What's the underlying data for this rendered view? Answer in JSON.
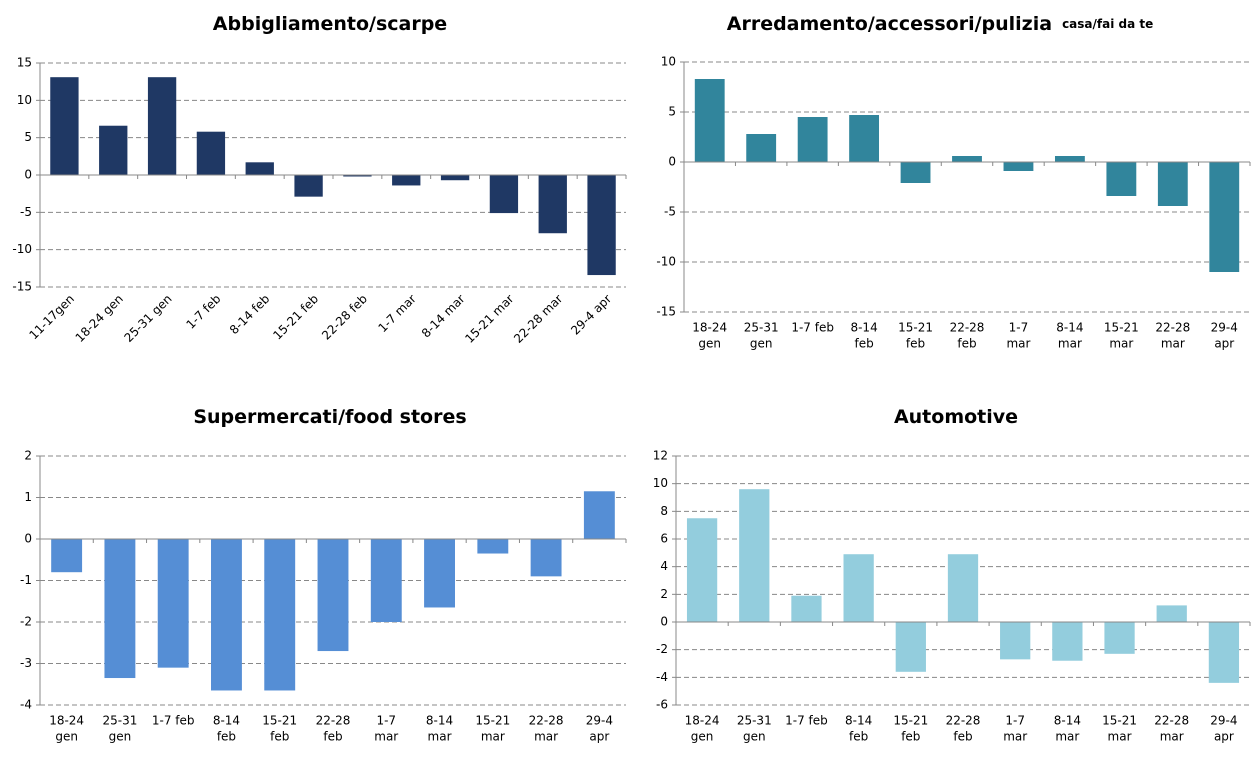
{
  "chart_data": [
    {
      "type": "bar",
      "title": "Abbigliamento/scarpe",
      "color": "#1f3864",
      "grid": true,
      "rotate_labels": true,
      "categories": [
        "11-17gen",
        "18-24 gen",
        "25-31 gen",
        "1-7 feb",
        "8-14 feb",
        "15-21 feb",
        "22-28 feb",
        "1-7 mar",
        "8-14 mar",
        "15-21 mar",
        "22-28 mar",
        "29-4 apr"
      ],
      "values": [
        13.1,
        6.6,
        13.1,
        5.8,
        1.7,
        -2.9,
        -0.2,
        -1.4,
        -0.7,
        -5.1,
        -7.8,
        -13.4
      ],
      "ylim": [
        -15,
        15
      ],
      "yticks": [
        -15,
        -10,
        -5,
        0,
        5,
        10,
        15
      ]
    },
    {
      "type": "bar",
      "title": "Arredamento/accessori/pulizia",
      "subtitle": "casa/fai da te",
      "color": "#31859c",
      "grid": true,
      "rotate_labels": false,
      "categories": [
        [
          "18-24",
          "gen"
        ],
        [
          "25-31",
          "gen"
        ],
        [
          "1-7 feb"
        ],
        [
          "8-14",
          "feb"
        ],
        [
          "15-21",
          "feb"
        ],
        [
          "22-28",
          "feb"
        ],
        [
          "1-7",
          "mar"
        ],
        [
          "8-14",
          "mar"
        ],
        [
          "15-21",
          "mar"
        ],
        [
          "22-28",
          "mar"
        ],
        [
          "29-4",
          "apr"
        ]
      ],
      "values": [
        8.3,
        2.8,
        4.5,
        4.7,
        -2.1,
        0.6,
        -0.9,
        0.6,
        -3.4,
        -4.4,
        -11.0
      ],
      "ylim": [
        -15,
        10
      ],
      "yticks": [
        -15,
        -10,
        -5,
        0,
        5,
        10
      ]
    },
    {
      "type": "bar",
      "title": "Supermercati/food stores",
      "color": "#558ed5",
      "grid": true,
      "rotate_labels": false,
      "categories": [
        [
          "18-24",
          "gen"
        ],
        [
          "25-31",
          "gen"
        ],
        [
          "1-7 feb"
        ],
        [
          "8-14",
          "feb"
        ],
        [
          "15-21",
          "feb"
        ],
        [
          "22-28",
          "feb"
        ],
        [
          "1-7",
          "mar"
        ],
        [
          "8-14",
          "mar"
        ],
        [
          "15-21",
          "mar"
        ],
        [
          "22-28",
          "mar"
        ],
        [
          "29-4",
          "apr"
        ]
      ],
      "values": [
        -0.8,
        -3.35,
        -3.1,
        -3.65,
        -3.65,
        -2.7,
        -2.0,
        -1.65,
        -0.35,
        -0.9,
        1.15
      ],
      "ylim": [
        -4,
        2
      ],
      "yticks": [
        -4,
        -3,
        -2,
        -1,
        0,
        1,
        2
      ]
    },
    {
      "type": "bar",
      "title": "Automotive",
      "color": "#93cddd",
      "grid": true,
      "rotate_labels": false,
      "categories": [
        [
          "18-24",
          "gen"
        ],
        [
          "25-31",
          "gen"
        ],
        [
          "1-7 feb"
        ],
        [
          "8-14",
          "feb"
        ],
        [
          "15-21",
          "feb"
        ],
        [
          "22-28",
          "feb"
        ],
        [
          "1-7",
          "mar"
        ],
        [
          "8-14",
          "mar"
        ],
        [
          "15-21",
          "mar"
        ],
        [
          "22-28",
          "mar"
        ],
        [
          "29-4",
          "apr"
        ]
      ],
      "values": [
        7.5,
        9.6,
        1.9,
        4.9,
        -3.6,
        4.9,
        -2.7,
        -2.8,
        -2.3,
        1.2,
        -4.4
      ],
      "ylim": [
        -6,
        12
      ],
      "yticks": [
        -6,
        -4,
        -2,
        0,
        2,
        4,
        6,
        8,
        10,
        12
      ]
    }
  ]
}
